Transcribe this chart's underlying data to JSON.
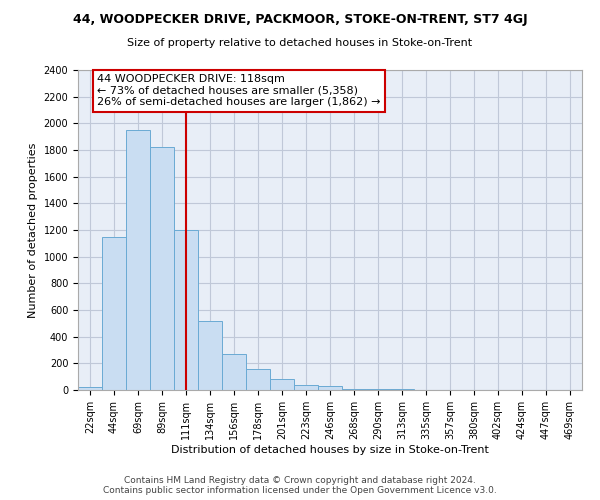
{
  "title": "44, WOODPECKER DRIVE, PACKMOOR, STOKE-ON-TRENT, ST7 4GJ",
  "subtitle": "Size of property relative to detached houses in Stoke-on-Trent",
  "xlabel": "Distribution of detached houses by size in Stoke-on-Trent",
  "ylabel": "Number of detached properties",
  "footer_line1": "Contains HM Land Registry data © Crown copyright and database right 2024.",
  "footer_line2": "Contains public sector information licensed under the Open Government Licence v3.0.",
  "annotation_line1": "44 WOODPECKER DRIVE: 118sqm",
  "annotation_line2": "← 73% of detached houses are smaller (5,358)",
  "annotation_line3": "26% of semi-detached houses are larger (1,862) →",
  "categories": [
    "22sqm",
    "44sqm",
    "69sqm",
    "89sqm",
    "111sqm",
    "134sqm",
    "156sqm",
    "178sqm",
    "201sqm",
    "223sqm",
    "246sqm",
    "268sqm",
    "290sqm",
    "313sqm",
    "335sqm",
    "357sqm",
    "380sqm",
    "402sqm",
    "424sqm",
    "447sqm",
    "469sqm"
  ],
  "bar_counts": [
    20,
    1150,
    1950,
    1825,
    1200,
    520,
    270,
    155,
    80,
    35,
    30,
    5,
    5,
    5,
    2,
    2,
    1,
    1,
    1,
    1,
    1
  ],
  "property_line_x": 4,
  "ylim": [
    0,
    2400
  ],
  "yticks": [
    0,
    200,
    400,
    600,
    800,
    1000,
    1200,
    1400,
    1600,
    1800,
    2000,
    2200,
    2400
  ],
  "bar_color": "#c9ddf2",
  "bar_edge_color": "#6aaad4",
  "line_color": "#cc0000",
  "annotation_box_edge": "#cc0000",
  "grid_color": "#c0c8d8",
  "background_color": "#e8eef7",
  "title_fontsize": 9,
  "subtitle_fontsize": 8,
  "ylabel_fontsize": 8,
  "xlabel_fontsize": 8,
  "tick_fontsize": 7,
  "footer_fontsize": 6.5,
  "annotation_fontsize": 8
}
